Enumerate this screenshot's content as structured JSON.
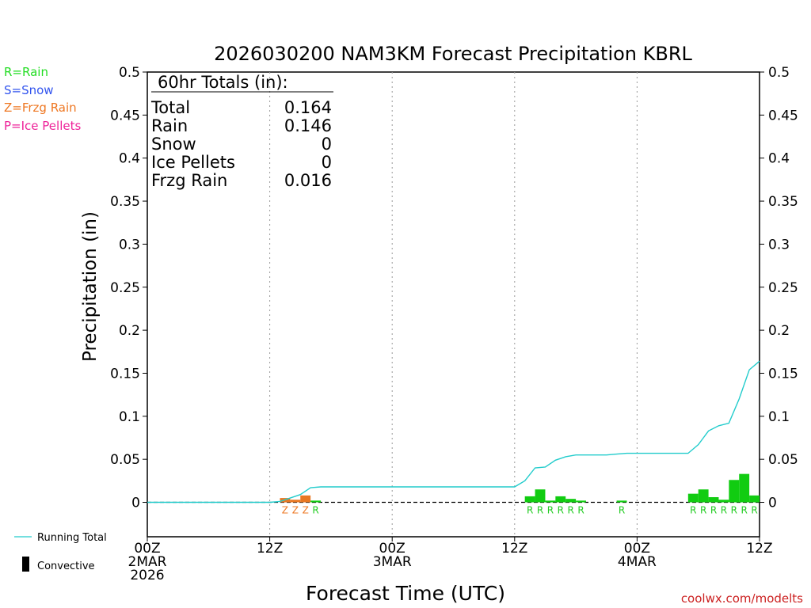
{
  "chart_data": {
    "type": "bar",
    "title": "2026030200 NAM3KM Forecast Precipitation KBRL",
    "xlabel": "Forecast Time (UTC)",
    "ylabel": "Precipitation (in)",
    "ylim": [
      -0.04,
      0.5
    ],
    "yticks": [
      0,
      0.05,
      0.1,
      0.15,
      0.2,
      0.25,
      0.3,
      0.35,
      0.4,
      0.45,
      0.5
    ],
    "ytick_labels": [
      "0",
      "0.05",
      "0.1",
      "0.15",
      "0.2",
      "0.25",
      "0.3",
      "0.35",
      "0.4",
      "0.45",
      "0.5"
    ],
    "xlim_hours": [
      0,
      60
    ],
    "xticks": [
      {
        "hour": 0,
        "labels": [
          "00Z",
          "2MAR",
          "2026"
        ]
      },
      {
        "hour": 12,
        "labels": [
          "12Z"
        ]
      },
      {
        "hour": 24,
        "labels": [
          "00Z",
          "3MAR"
        ]
      },
      {
        "hour": 36,
        "labels": [
          "12Z"
        ]
      },
      {
        "hour": 48,
        "labels": [
          "00Z",
          "4MAR"
        ]
      },
      {
        "hour": 60,
        "labels": [
          "12Z"
        ]
      }
    ],
    "ptype_legend": [
      {
        "label": "R=Rain",
        "color": "#22dd22"
      },
      {
        "label": "S=Snow",
        "color": "#3355ee"
      },
      {
        "label": "Z=Frzg Rain",
        "color": "#ee7722"
      },
      {
        "label": "P=Ice Pellets",
        "color": "#ee2299"
      }
    ],
    "series_legend": [
      {
        "label": "Running Total",
        "color": "#22cccc",
        "style": "line"
      },
      {
        "label": "Convective",
        "color": "#000000",
        "style": "bar"
      }
    ],
    "totals_box": {
      "header": "60hr Totals (in):",
      "rows": [
        {
          "label": "Total",
          "value": "0.164"
        },
        {
          "label": "Rain",
          "value": "0.146"
        },
        {
          "label": "Snow",
          "value": "0"
        },
        {
          "label": "Ice Pellets",
          "value": "0"
        },
        {
          "label": "Frzg Rain",
          "value": "0.016"
        }
      ]
    },
    "bars": [
      {
        "hour": 14,
        "value": 0.005,
        "type": "Z"
      },
      {
        "hour": 15,
        "value": 0.003,
        "type": "Z"
      },
      {
        "hour": 16,
        "value": 0.008,
        "type": "Z"
      },
      {
        "hour": 17,
        "value": 0.002,
        "type": "R"
      },
      {
        "hour": 38,
        "value": 0.007,
        "type": "R"
      },
      {
        "hour": 39,
        "value": 0.015,
        "type": "R"
      },
      {
        "hour": 40,
        "value": 0.002,
        "type": "R"
      },
      {
        "hour": 41,
        "value": 0.007,
        "type": "R"
      },
      {
        "hour": 42,
        "value": 0.004,
        "type": "R"
      },
      {
        "hour": 43,
        "value": 0.002,
        "type": "R"
      },
      {
        "hour": 47,
        "value": 0.002,
        "type": "R"
      },
      {
        "hour": 54,
        "value": 0.01,
        "type": "R"
      },
      {
        "hour": 55,
        "value": 0.015,
        "type": "R"
      },
      {
        "hour": 56,
        "value": 0.006,
        "type": "R"
      },
      {
        "hour": 57,
        "value": 0.003,
        "type": "R"
      },
      {
        "hour": 58,
        "value": 0.026,
        "type": "R"
      },
      {
        "hour": 59,
        "value": 0.033,
        "type": "R"
      },
      {
        "hour": 60,
        "value": 0.008,
        "type": "R"
      }
    ],
    "type_color_map": {
      "R": "#11cc11",
      "Z": "#e87722",
      "S": "#3355ee",
      "P": "#ee2299"
    },
    "type_label_colors": {
      "R": "#22cc22",
      "Z": "#ee7722",
      "S": "#3355ee",
      "P": "#ee2299"
    },
    "running_total": {
      "hours": [
        0,
        12,
        13,
        14,
        15,
        16,
        17,
        24,
        36,
        37,
        38,
        39,
        40,
        41,
        42,
        43,
        44,
        45,
        46,
        47,
        48,
        53,
        54,
        55,
        56,
        57,
        58,
        59,
        60
      ],
      "values": [
        0,
        0,
        0.001,
        0.005,
        0.009,
        0.017,
        0.018,
        0.018,
        0.018,
        0.025,
        0.04,
        0.041,
        0.049,
        0.053,
        0.055,
        0.055,
        0.055,
        0.055,
        0.056,
        0.057,
        0.057,
        0.057,
        0.067,
        0.083,
        0.089,
        0.092,
        0.12,
        0.154,
        0.164
      ]
    }
  },
  "watermark": "coolwx.com/modelts"
}
